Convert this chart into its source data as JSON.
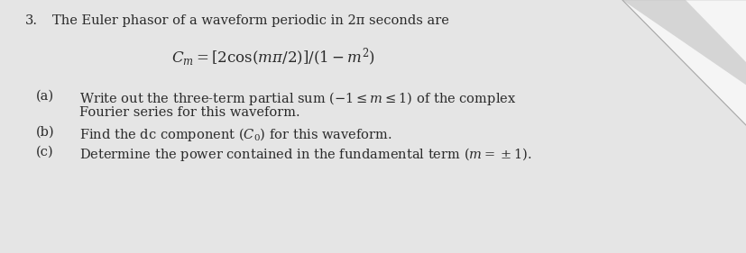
{
  "background_color": "#e5e5e5",
  "fig_width": 8.28,
  "fig_height": 2.81,
  "dpi": 100,
  "triangle_fill": "#f0f0f0",
  "triangle_shadow": "#b8b8b8",
  "text_color": "#2a2a2a",
  "line1_num": "3.",
  "line1_text": "The Euler phasor of a waveform periodic in 2π seconds are",
  "line2": "$C_m = [2\\cos(m\\pi/2)]/(1 - m^2)$",
  "label_a": "(a)",
  "text_a1": "Write out the three-term partial sum ($-1 \\leq m \\leq 1$) of the complex",
  "text_a2": "Fourier series for this waveform.",
  "label_b": "(b)",
  "text_b": "Find the dc component ($C_0$) for this waveform.",
  "label_c": "(c)",
  "text_c": "Determine the power contained in the fundamental term ($m = \\pm 1$).",
  "font_size_body": 10.5,
  "font_size_formula": 12.0,
  "font_family": "DejaVu Serif"
}
